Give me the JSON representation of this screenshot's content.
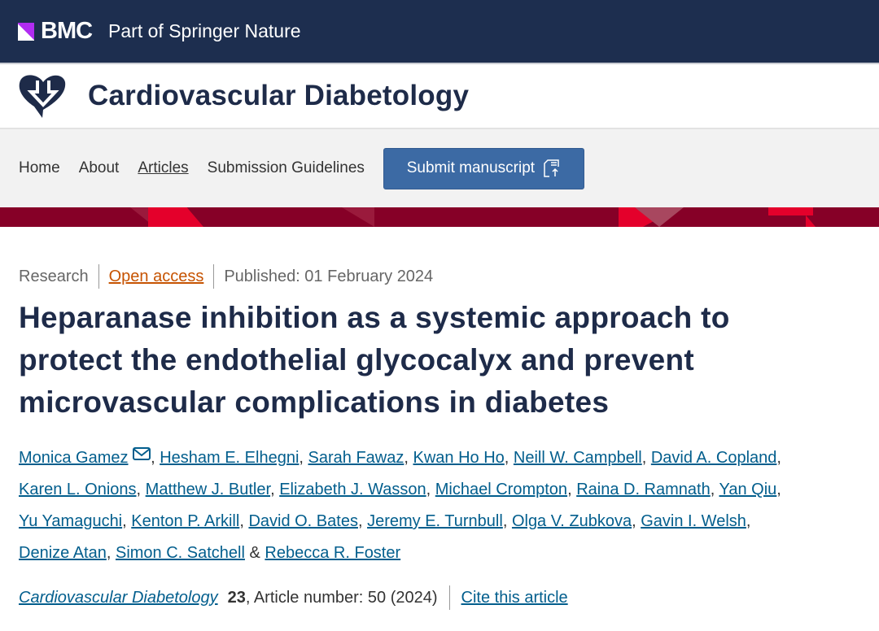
{
  "brand": {
    "name": "BMC",
    "tagline": "Part of Springer Nature"
  },
  "journal": {
    "title": "Cardiovascular Diabetology"
  },
  "nav": {
    "items": [
      "Home",
      "About",
      "Articles",
      "Submission Guidelines"
    ],
    "active": "Articles",
    "submit": "Submit manuscript"
  },
  "colors": {
    "header": "#1d2e4f",
    "title": "#1e2b49",
    "link": "#025e8d",
    "open_access": "#c65301",
    "button": "#3c6aa4",
    "banner": "#860027"
  },
  "article": {
    "type": "Research",
    "access": "Open access",
    "published": "Published: 01 February 2024",
    "title_lines": [
      "Heparanase inhibition as a systemic approach to",
      "protect the endothelial glycocalyx and prevent",
      "microvascular complications in diabetes"
    ],
    "author_lines": [
      [
        "Monica Gamez",
        "Hesham E. Elhegni",
        "Sarah Fawaz",
        "Kwan Ho Ho",
        "Neill W. Campbell",
        "David A. Copland"
      ],
      [
        "Karen L. Onions",
        "Matthew J. Butler",
        "Elizabeth J. Wasson",
        "Michael Crompton",
        "Raina D. Ramnath",
        "Yan Qiu"
      ],
      [
        "Yu Yamaguchi",
        "Kenton P. Arkill",
        "David O. Bates",
        "Jeremy E. Turnbull",
        "Olga V. Zubkova",
        "Gavin I. Welsh"
      ],
      [
        "Denize Atan",
        "Simon C. Satchell",
        "Rebecca R. Foster"
      ]
    ],
    "last_separator": "&",
    "journal_link": "Cardiovascular Diabetology",
    "volume": "23",
    "article_number": ", Article number: 50 (2024)",
    "cite": "Cite this article"
  }
}
